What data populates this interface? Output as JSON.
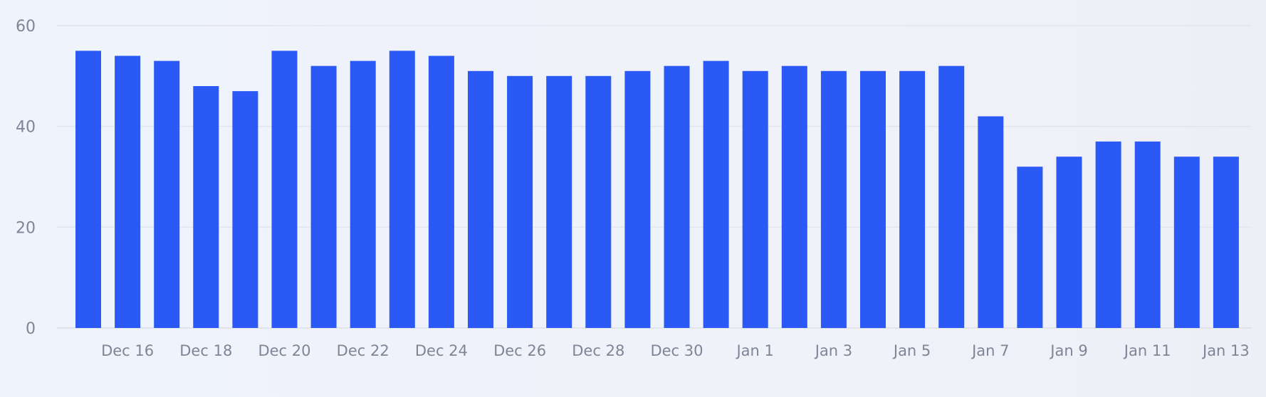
{
  "chart_data": {
    "type": "bar",
    "title": "",
    "xlabel": "",
    "ylabel": "",
    "ylim": [
      0,
      60
    ],
    "y_ticks": [
      0,
      20,
      40,
      60
    ],
    "grid": true,
    "categories": [
      "Dec 15",
      "Dec 16",
      "Dec 17",
      "Dec 18",
      "Dec 19",
      "Dec 20",
      "Dec 21",
      "Dec 22",
      "Dec 23",
      "Dec 24",
      "Dec 25",
      "Dec 26",
      "Dec 27",
      "Dec 28",
      "Dec 29",
      "Dec 30",
      "Dec 31",
      "Jan 1",
      "Jan 2",
      "Jan 3",
      "Jan 4",
      "Jan 5",
      "Jan 6",
      "Jan 7",
      "Jan 8",
      "Jan 9",
      "Jan 10",
      "Jan 11",
      "Jan 12",
      "Jan 13"
    ],
    "x_tick_labels": [
      "Dec 16",
      "Dec 18",
      "Dec 20",
      "Dec 22",
      "Dec 24",
      "Dec 26",
      "Dec 28",
      "Dec 30",
      "Jan 1",
      "Jan 3",
      "Jan 5",
      "Jan 7",
      "Jan 9",
      "Jan 11",
      "Jan 13"
    ],
    "values": [
      55,
      54,
      53,
      48,
      47,
      55,
      52,
      53,
      55,
      54,
      51,
      50,
      50,
      50,
      51,
      52,
      53,
      51,
      52,
      51,
      51,
      51,
      52,
      42,
      32,
      34,
      37,
      37,
      34,
      34
    ],
    "bar_color": "#2b59f6"
  }
}
